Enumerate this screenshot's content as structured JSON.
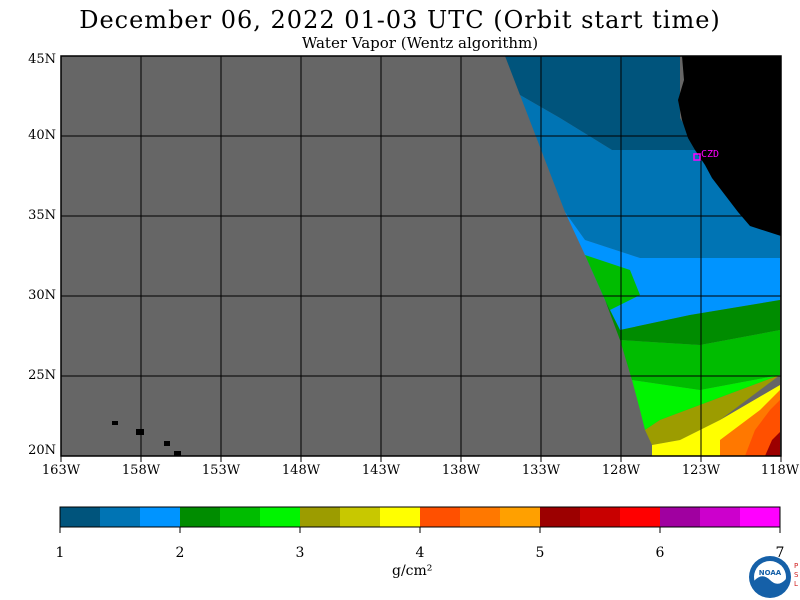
{
  "header": {
    "title": "December 06, 2022  01-03 UTC  (Orbit start time)",
    "subtitle": "Water Vapor (Wentz algorithm)"
  },
  "map": {
    "lat_labels": [
      "45N",
      "40N",
      "35N",
      "30N",
      "25N",
      "20N"
    ],
    "lon_labels": [
      "163W",
      "158W",
      "153W",
      "148W",
      "143W",
      "138W",
      "133W",
      "128W",
      "123W",
      "118W"
    ],
    "station_label": "CZD",
    "colors": {
      "no_data": "#666666",
      "land": "#000000",
      "grid": "#000000",
      "station": "#ff00ff"
    }
  },
  "colorbar": {
    "colors": [
      "#00547c",
      "#0074b4",
      "#0094ff",
      "#008c00",
      "#00bc00",
      "#00f400",
      "#9c9c00",
      "#c8c800",
      "#ffff00",
      "#ff5000",
      "#ff7800",
      "#ffa000",
      "#9c0000",
      "#c80000",
      "#ff0000",
      "#a000a0",
      "#cc00cc",
      "#ff00ff"
    ],
    "tick_labels": [
      "1",
      "2",
      "3",
      "4",
      "5",
      "6",
      "7"
    ],
    "unit": "g/cm²"
  },
  "logo": {
    "text": "NOAA",
    "side_text": "PSL"
  }
}
